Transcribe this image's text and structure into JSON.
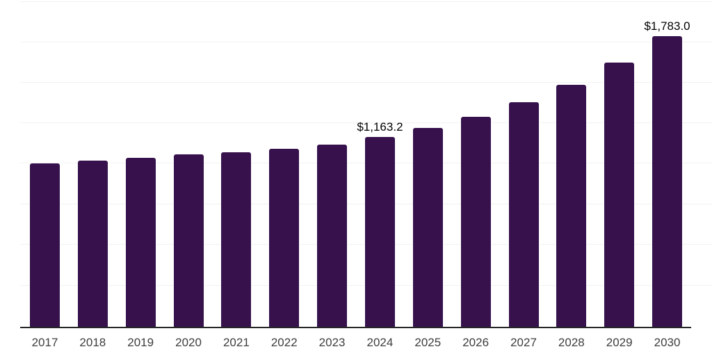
{
  "chart_data": {
    "type": "bar",
    "title": "",
    "xlabel": "",
    "ylabel": "",
    "categories": [
      "2017",
      "2018",
      "2019",
      "2020",
      "2021",
      "2022",
      "2023",
      "2024",
      "2025",
      "2026",
      "2027",
      "2028",
      "2029",
      "2030"
    ],
    "series": [
      {
        "name": "value",
        "values": [
          1002,
          1020,
          1037,
          1058,
          1071,
          1092,
          1118,
          1163.2,
          1220,
          1288,
          1378,
          1484,
          1621,
          1783
        ]
      }
    ],
    "data_labels": [
      null,
      null,
      null,
      null,
      null,
      null,
      null,
      "$1,163.2",
      null,
      null,
      null,
      null,
      null,
      "$1,783.0"
    ],
    "ylim": [
      0,
      2005
    ],
    "grid": true,
    "legend": false,
    "colors": {
      "bar": "#36114C",
      "gridline": "#f2f2f2",
      "axis": "#262626",
      "tick_label": "#3d3d3d",
      "value_label": "#000000"
    }
  }
}
